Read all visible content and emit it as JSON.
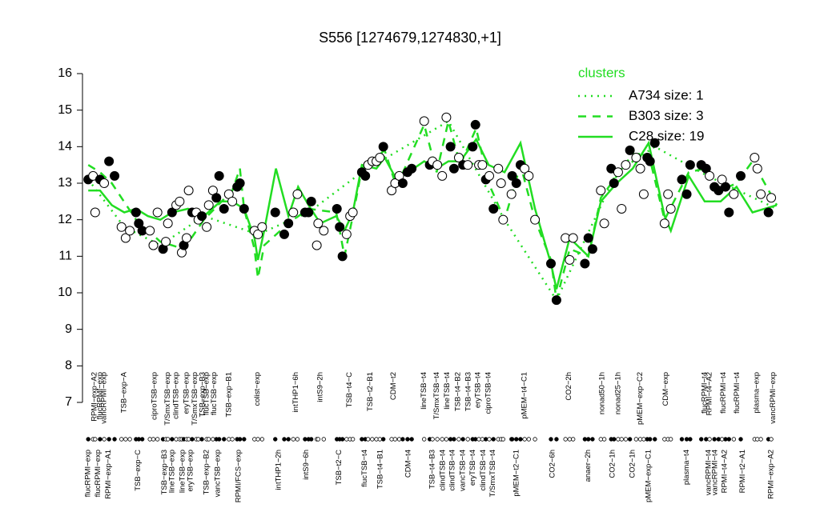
{
  "chart_data": {
    "type": "scatter",
    "title": "S556 [1274679,1274830,+1]",
    "ylim": [
      7,
      16
    ],
    "yticks": [
      7,
      8,
      9,
      10,
      11,
      12,
      13,
      14,
      15,
      16
    ],
    "xlim": [
      0,
      100
    ],
    "xticks_top": [
      {
        "value": 1.5,
        "label": "RPMI−exp−A2"
      },
      {
        "value": 2.3,
        "label": "flucRPMI−exp"
      },
      {
        "value": 2.9,
        "label": "vancRPMI−exp"
      },
      {
        "value": 5.8,
        "label": "TSB−exp−A"
      },
      {
        "value": 10.2,
        "label": "ciproTSB−exp"
      },
      {
        "value": 12.1,
        "label": "T/SmxTSB−exp"
      },
      {
        "value": 13.3,
        "label": "clindTSB−exp"
      },
      {
        "value": 14.8,
        "label": "eryTSB−exp"
      },
      {
        "value": 16.0,
        "label": "T/SmxTSB−exp"
      },
      {
        "value": 17.1,
        "label": "TSB−exp−B3"
      },
      {
        "value": 17.7,
        "label": "flucTSB−exp"
      },
      {
        "value": 18.8,
        "label": "flucTSB−exp"
      },
      {
        "value": 20.9,
        "label": "TSB−exp−B1"
      },
      {
        "value": 25.0,
        "label": "colist−exp"
      },
      {
        "value": 30.6,
        "label": "intTHP1−6h"
      },
      {
        "value": 34.1,
        "label": "intS9−2h"
      },
      {
        "value": 38.3,
        "label": "TSB−t4−C"
      },
      {
        "value": 41.3,
        "label": "TSB−t2−B1"
      },
      {
        "value": 44.7,
        "label": "CDM−t2"
      },
      {
        "value": 49.1,
        "label": "lineTSB−t4"
      },
      {
        "value": 50.9,
        "label": "T/SmxTSB−t4"
      },
      {
        "value": 52.4,
        "label": "lineTSB−t4"
      },
      {
        "value": 54.0,
        "label": "TSB−t4−B2"
      },
      {
        "value": 55.5,
        "label": "TSB−t4−B3"
      },
      {
        "value": 56.9,
        "label": "eryTSB−t4"
      },
      {
        "value": 58.4,
        "label": "ciproTSB−t4"
      },
      {
        "value": 63.6,
        "label": "pMEM−t4−C1"
      },
      {
        "value": 70.0,
        "label": "CO2−2h"
      },
      {
        "value": 74.8,
        "label": "nonad50−1h"
      },
      {
        "value": 77.1,
        "label": "nonad25−1h"
      },
      {
        "value": 80.3,
        "label": "pMEM−exp−C2"
      },
      {
        "value": 84.0,
        "label": "CDM−exp"
      },
      {
        "value": 89.6,
        "label": "flucRPMI−t4"
      },
      {
        "value": 90.3,
        "label": "RPMI−t4−A2"
      },
      {
        "value": 92.3,
        "label": "flucRPMI−t4"
      },
      {
        "value": 94.3,
        "label": "flucRPMI−t4"
      },
      {
        "value": 97.1,
        "label": "plasma−exp"
      },
      {
        "value": 99.5,
        "label": "vancRPMI−exp"
      }
    ],
    "xticks_bottom": [
      {
        "value": 0.6,
        "label": "flucRPMI−exp"
      },
      {
        "value": 2.0,
        "label": "flucRPMI−exp"
      },
      {
        "value": 3.5,
        "label": "RPMI−exp−A1"
      },
      {
        "value": 7.8,
        "label": "TSB−exp−C"
      },
      {
        "value": 11.6,
        "label": "TSB−exp−B3"
      },
      {
        "value": 12.7,
        "label": "lineTSB−exp"
      },
      {
        "value": 14.2,
        "label": "lineTSB−exp"
      },
      {
        "value": 15.4,
        "label": "eryTSB−exp"
      },
      {
        "value": 17.7,
        "label": "TSB−exp−B2"
      },
      {
        "value": 19.3,
        "label": "vancTSB−exp"
      },
      {
        "value": 22.3,
        "label": "RPMI/FCS−exp"
      },
      {
        "value": 28.1,
        "label": "intTHP1−2h"
      },
      {
        "value": 32.1,
        "label": "intS9−6h"
      },
      {
        "value": 36.8,
        "label": "TSB−t2−C"
      },
      {
        "value": 40.5,
        "label": "flucTSB−t4"
      },
      {
        "value": 42.8,
        "label": "TSB−t4−B1"
      },
      {
        "value": 46.8,
        "label": "CDM−t4"
      },
      {
        "value": 50.3,
        "label": "TSB−t4−B3"
      },
      {
        "value": 51.8,
        "label": "clindTSB−t4"
      },
      {
        "value": 53.2,
        "label": "clindTSB−t4"
      },
      {
        "value": 54.7,
        "label": "vancTSB−t4"
      },
      {
        "value": 56.1,
        "label": "eryTSB−t4"
      },
      {
        "value": 57.6,
        "label": "clindTSB−t4"
      },
      {
        "value": 59.0,
        "label": "T/SmxTSB−t4"
      },
      {
        "value": 62.4,
        "label": "pMEM−t2−C1"
      },
      {
        "value": 67.6,
        "label": "CO2−6h"
      },
      {
        "value": 72.8,
        "label": "anaer−2h"
      },
      {
        "value": 76.3,
        "label": "CO2−1h"
      },
      {
        "value": 79.2,
        "label": "CO2−1h"
      },
      {
        "value": 81.5,
        "label": "pMEM−exp−C1"
      },
      {
        "value": 87.0,
        "label": "plasma−t4"
      },
      {
        "value": 90.2,
        "label": "vancRPMI−t4"
      },
      {
        "value": 91.1,
        "label": "vancRPMI−t4"
      },
      {
        "value": 92.5,
        "label": "RPMI−t4−A2"
      },
      {
        "value": 95.1,
        "label": "RPMI−t2−A1"
      },
      {
        "value": 99.2,
        "label": "RPMI−exp−A2"
      }
    ],
    "points": {
      "x": [
        0.6,
        1.3,
        1.6,
        2.3,
        2.9,
        3.6,
        4.4,
        5.4,
        6.0,
        6.6,
        7.5,
        7.9,
        8.4,
        9.5,
        10.0,
        10.6,
        11.4,
        11.8,
        12.1,
        12.7,
        13.3,
        13.8,
        14.1,
        14.4,
        14.8,
        15.1,
        15.6,
        16.2,
        16.5,
        17.0,
        17.7,
        18.0,
        18.6,
        19.1,
        19.5,
        20.2,
        20.9,
        21.4,
        22.1,
        22.5,
        23.1,
        24.6,
        25.1,
        25.7,
        27.6,
        28.9,
        29.5,
        30.2,
        30.8,
        31.9,
        32.4,
        32.8,
        33.6,
        33.8,
        34.6,
        36.5,
        36.9,
        37.3,
        37.9,
        38.4,
        38.8,
        40.1,
        40.6,
        41.0,
        41.6,
        42.2,
        42.7,
        43.2,
        44.4,
        44.9,
        45.5,
        46.0,
        46.7,
        47.3,
        49.1,
        49.9,
        50.3,
        51.0,
        51.7,
        52.3,
        52.9,
        53.4,
        54.1,
        54.7,
        55.4,
        56.1,
        56.5,
        57.0,
        57.5,
        58.0,
        58.5,
        59.1,
        59.8,
        60.2,
        60.5,
        61.7,
        61.8,
        62.4,
        63.0,
        63.6,
        64.2,
        65.1,
        67.4,
        68.2,
        69.5,
        70.1,
        70.6,
        72.3,
        72.8,
        73.4,
        74.6,
        75.1,
        76.1,
        76.5,
        77.1,
        77.6,
        78.2,
        78.8,
        79.7,
        80.3,
        80.8,
        81.3,
        81.7,
        82.4,
        83.8,
        84.3,
        84.7,
        86.3,
        87.0,
        87.5,
        89.1,
        89.8,
        90.3,
        91.0,
        91.6,
        92.1,
        92.6,
        93.1,
        93.8,
        94.8,
        96.8,
        97.2,
        97.7,
        98.8,
        99.2
      ],
      "values": [
        13.1,
        13.2,
        12.2,
        13.1,
        13.0,
        13.6,
        13.2,
        11.8,
        11.5,
        11.7,
        12.2,
        11.9,
        11.7,
        11.7,
        11.3,
        12.2,
        11.2,
        11.4,
        11.9,
        12.2,
        12.4,
        12.5,
        11.1,
        11.3,
        11.5,
        12.8,
        12.2,
        12.2,
        12.0,
        12.1,
        11.8,
        12.4,
        12.8,
        12.6,
        13.2,
        12.3,
        12.7,
        12.5,
        12.9,
        13.0,
        12.3,
        11.7,
        11.6,
        11.8,
        12.2,
        11.6,
        11.9,
        12.2,
        12.7,
        12.2,
        12.2,
        12.5,
        11.3,
        11.9,
        11.7,
        12.3,
        11.8,
        11.0,
        11.6,
        12.1,
        12.2,
        13.3,
        13.2,
        13.5,
        13.6,
        13.6,
        13.7,
        14.0,
        12.8,
        13.0,
        13.2,
        13.0,
        13.3,
        13.4,
        14.7,
        13.5,
        13.6,
        13.5,
        13.2,
        14.8,
        14.0,
        13.4,
        13.7,
        13.5,
        13.5,
        14.0,
        14.6,
        13.5,
        13.5,
        13.1,
        13.2,
        12.3,
        13.4,
        13.0,
        12.0,
        12.7,
        13.2,
        13.0,
        13.5,
        13.4,
        13.2,
        12.0,
        10.8,
        9.8,
        11.5,
        10.9,
        11.5,
        10.8,
        11.5,
        11.2,
        12.8,
        11.9,
        13.4,
        13.0,
        13.3,
        12.3,
        13.5,
        13.9,
        13.7,
        13.4,
        12.7,
        13.7,
        13.6,
        14.1,
        11.9,
        12.7,
        12.3,
        13.1,
        12.7,
        13.5,
        13.5,
        13.4,
        13.2,
        12.9,
        12.8,
        13.1,
        12.9,
        12.2,
        12.7,
        13.2,
        13.7,
        13.4,
        12.7,
        12.2,
        12.6
      ],
      "filled": [
        true,
        false,
        false,
        true,
        false,
        true,
        true,
        false,
        false,
        false,
        true,
        true,
        true,
        false,
        false,
        false,
        true,
        false,
        false,
        true,
        false,
        false,
        false,
        true,
        false,
        false,
        true,
        false,
        false,
        true,
        false,
        false,
        false,
        true,
        true,
        true,
        false,
        false,
        true,
        true,
        true,
        false,
        false,
        false,
        true,
        true,
        true,
        false,
        false,
        true,
        true,
        true,
        false,
        false,
        false,
        true,
        true,
        true,
        false,
        false,
        false,
        true,
        true,
        false,
        false,
        false,
        false,
        true,
        false,
        false,
        false,
        true,
        true,
        true,
        false,
        true,
        false,
        false,
        false,
        false,
        true,
        true,
        false,
        true,
        false,
        true,
        true,
        false,
        false,
        true,
        false,
        true,
        false,
        false,
        false,
        false,
        true,
        true,
        true,
        false,
        false,
        false,
        true,
        true,
        false,
        false,
        false,
        true,
        true,
        true,
        false,
        false,
        true,
        true,
        false,
        false,
        false,
        true,
        false,
        false,
        false,
        true,
        true,
        true,
        false,
        false,
        false,
        true,
        true,
        true,
        true,
        true,
        false,
        true,
        true,
        false,
        true,
        true,
        false,
        true,
        false,
        false,
        false,
        true,
        false
      ]
    },
    "legend_title": "clusters",
    "legend": "top-right",
    "series": [
      {
        "name": "A734 size: 1",
        "color": "#22dd22",
        "dash": "dotted",
        "x": [
          0.6,
          5.8,
          11.0,
          17.3,
          25.1,
          32.4,
          40.1,
          52.6,
          60.7,
          68.2,
          76.9,
          82.4,
          90.0,
          100
        ],
        "values": [
          13.1,
          11.8,
          11.3,
          12.1,
          11.6,
          12.2,
          13.3,
          14.7,
          12.0,
          9.8,
          13.3,
          14.0,
          13.2,
          12.3
        ]
      },
      {
        "name": "B303 size: 3",
        "color": "#22dd22",
        "dash": "dashed",
        "x": [
          0.6,
          2.3,
          4.0,
          7.5,
          11.0,
          14.4,
          17.3,
          21.4,
          22.5,
          23.1,
          24.6,
          25.1,
          26.0,
          29.5,
          32.4,
          36.4,
          37.6,
          38.8,
          40.1,
          43.4,
          45.1,
          49.1,
          50.9,
          52.6,
          54.3,
          56.6,
          58.4,
          60.7,
          63.0,
          65.1,
          67.4,
          68.2,
          70.1,
          72.8,
          74.6,
          76.9,
          79.2,
          81.5,
          83.8,
          87.3,
          89.6,
          91.9,
          94.2,
          96.5,
          100
        ],
        "values": [
          13.5,
          13.3,
          13.0,
          12.0,
          11.4,
          11.2,
          12.0,
          12.8,
          13.4,
          12.3,
          11.2,
          10.4,
          11.3,
          11.9,
          12.3,
          12.2,
          11.0,
          12.1,
          13.4,
          13.9,
          12.9,
          14.6,
          13.3,
          14.7,
          13.5,
          14.5,
          13.0,
          12.0,
          13.5,
          12.0,
          10.9,
          9.8,
          11.2,
          11.0,
          12.6,
          13.2,
          13.8,
          13.8,
          12.0,
          13.3,
          13.4,
          12.8,
          13.0,
          13.6,
          12.4
        ]
      },
      {
        "name": "C28 size: 19",
        "color": "#22dd22",
        "dash": "solid",
        "x": [
          0.6,
          2.3,
          4.0,
          5.8,
          7.5,
          9.2,
          11.0,
          12.7,
          15.0,
          17.3,
          19.7,
          21.4,
          23.1,
          24.6,
          25.1,
          26.0,
          27.7,
          29.5,
          30.9,
          32.4,
          34.1,
          36.4,
          37.6,
          38.8,
          40.1,
          42.2,
          43.4,
          45.1,
          46.8,
          49.1,
          50.9,
          52.6,
          54.3,
          56.6,
          58.4,
          60.7,
          63.0,
          65.1,
          67.4,
          68.2,
          70.1,
          72.8,
          74.6,
          76.9,
          79.2,
          81.5,
          83.8,
          84.7,
          87.3,
          89.6,
          91.9,
          94.2,
          96.5,
          100
        ],
        "values": [
          12.8,
          12.8,
          12.4,
          12.2,
          12.3,
          12.1,
          12.0,
          12.2,
          12.3,
          12.1,
          12.5,
          12.5,
          12.3,
          11.5,
          10.9,
          11.7,
          13.4,
          12.1,
          12.9,
          12.4,
          11.9,
          12.1,
          11.7,
          12.2,
          13.5,
          13.4,
          13.7,
          13.1,
          13.3,
          13.6,
          13.4,
          13.6,
          13.6,
          14.2,
          13.5,
          13.3,
          14.1,
          12.3,
          10.8,
          10.1,
          11.5,
          11.0,
          12.5,
          13.0,
          13.4,
          14.1,
          12.1,
          11.7,
          13.2,
          12.5,
          12.5,
          12.9,
          12.2,
          12.4
        ]
      }
    ]
  }
}
